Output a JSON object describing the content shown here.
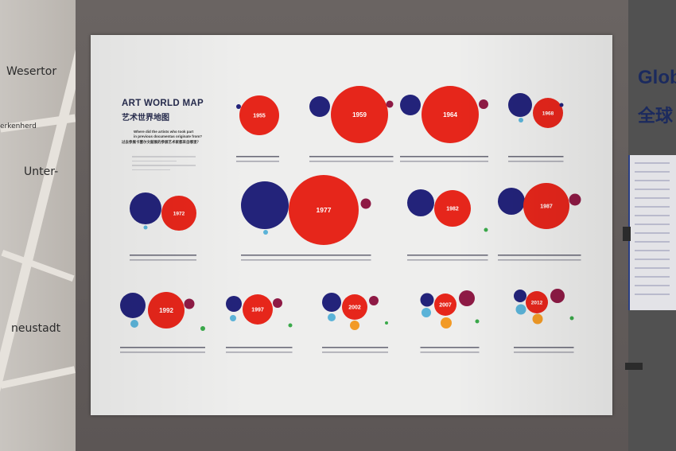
{
  "map": {
    "labels": [
      "Wesertor",
      "Unter-",
      "neustadt",
      "erkenherd"
    ]
  },
  "right_wall": {
    "title_en": "Glob",
    "title_cn": "全球"
  },
  "poster": {
    "title": "ART WORLD MAP",
    "title_cn": "艺术世界地图",
    "question_line1": "Where did the artists who took part",
    "question_line2": "in previous documentas originate from?",
    "question_cn": "过去参展卡塞尔文献展的参展艺术家都来自哪里？",
    "years": [
      "1955",
      "1959",
      "1964",
      "1968",
      "1972",
      "1977",
      "1982",
      "1987",
      "1992",
      "1997",
      "2002",
      "2007",
      "2012"
    ],
    "colors": {
      "north_america": "#23237a",
      "europe": "#e6261b",
      "africa": "#8e1a45",
      "asia": "#5bb3d8",
      "oceania": "#3aa94a",
      "south_america": "#f29a26"
    }
  }
}
